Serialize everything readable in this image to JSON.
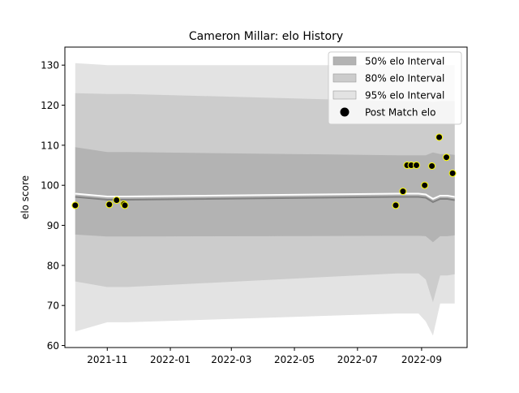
{
  "chart_data": {
    "type": "line",
    "title": "Cameron Millar: elo History",
    "xlabel": "",
    "ylabel": "elo score",
    "xlim": [
      "2021-09-21",
      "2022-10-15"
    ],
    "ylim": [
      59.5,
      134.5
    ],
    "x_ticks": [
      "2021-11",
      "2022-01",
      "2022-03",
      "2022-05",
      "2022-07",
      "2022-09"
    ],
    "y_ticks": [
      60,
      70,
      80,
      90,
      100,
      110,
      120,
      130
    ],
    "grid": false,
    "legend": {
      "position": "top-right",
      "entries": [
        {
          "label": "50% elo Interval",
          "kind": "patch",
          "color": "#b3b3b3"
        },
        {
          "label": "80% elo Interval",
          "kind": "patch",
          "color": "#cccccc"
        },
        {
          "label": "95% elo Interval",
          "kind": "patch",
          "color": "#e3e3e3"
        },
        {
          "label": "Post Match elo",
          "kind": "marker",
          "color": "#000000"
        }
      ]
    },
    "band_x": [
      "2021-10-01",
      "2021-11-01",
      "2021-11-20",
      "2022-08-08",
      "2022-08-15",
      "2022-08-22",
      "2022-08-29",
      "2022-09-05",
      "2022-09-12",
      "2022-09-19",
      "2022-09-26",
      "2022-10-03"
    ],
    "mean_elo": [
      97.5,
      96.8,
      96.8,
      97.5,
      97.5,
      97.5,
      97.5,
      97.3,
      96.2,
      97.0,
      97.0,
      96.7
    ],
    "mean_line_color": "#ffffff",
    "median_line_color": "#808080",
    "intervals": [
      {
        "label": "95% elo Interval",
        "color": "#e3e3e3",
        "lower": [
          63.5,
          65.8,
          65.8,
          68.0,
          68.0,
          68.0,
          68.0,
          66.0,
          62.5,
          70.5,
          70.5,
          70.5
        ],
        "upper": [
          130.5,
          130.0,
          130.0,
          130.0,
          130.0,
          130.0,
          130.0,
          130.0,
          130.0,
          130.0,
          130.0,
          130.0
        ]
      },
      {
        "label": "80% elo Interval",
        "color": "#cccccc",
        "lower": [
          76.0,
          74.6,
          74.6,
          78.0,
          78.0,
          78.0,
          78.0,
          76.5,
          70.8,
          77.5,
          77.5,
          77.8
        ],
        "upper": [
          123.0,
          122.8,
          122.8,
          121.0,
          121.0,
          121.0,
          121.0,
          121.0,
          120.8,
          121.0,
          121.0,
          121.0
        ]
      },
      {
        "label": "50% elo Interval",
        "color": "#b3b3b3",
        "lower": [
          87.7,
          87.2,
          87.2,
          87.4,
          87.4,
          87.4,
          87.4,
          87.3,
          85.8,
          87.3,
          87.3,
          87.5
        ],
        "upper": [
          109.5,
          108.3,
          108.3,
          107.5,
          107.5,
          107.5,
          107.5,
          107.5,
          108.2,
          107.8,
          107.8,
          107.6
        ]
      }
    ],
    "series": [
      {
        "name": "Post Match elo",
        "type": "scatter",
        "color": "#000000",
        "edge_color": "#ffff00",
        "points": [
          {
            "x": "2021-10-01",
            "y": 95.0
          },
          {
            "x": "2021-11-03",
            "y": 95.2
          },
          {
            "x": "2021-11-10",
            "y": 96.3
          },
          {
            "x": "2021-11-17",
            "y": 95.3
          },
          {
            "x": "2021-11-18",
            "y": 95.0
          },
          {
            "x": "2022-08-07",
            "y": 95.0
          },
          {
            "x": "2022-08-14",
            "y": 98.5
          },
          {
            "x": "2022-08-18",
            "y": 105.0
          },
          {
            "x": "2022-08-22",
            "y": 105.0
          },
          {
            "x": "2022-08-27",
            "y": 105.0
          },
          {
            "x": "2022-09-04",
            "y": 100.0
          },
          {
            "x": "2022-09-11",
            "y": 104.8
          },
          {
            "x": "2022-09-18",
            "y": 112.0
          },
          {
            "x": "2022-09-25",
            "y": 107.0
          },
          {
            "x": "2022-10-01",
            "y": 103.0
          }
        ]
      }
    ]
  }
}
